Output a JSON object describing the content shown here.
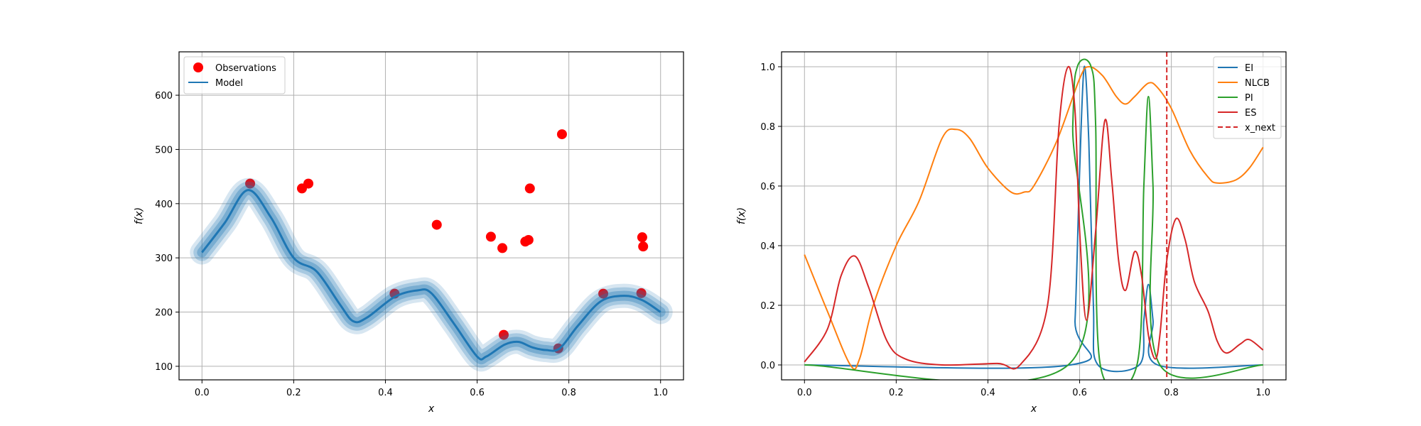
{
  "chart_data": [
    {
      "type": "line",
      "title": "",
      "xlabel": "x",
      "ylabel": "f(x)",
      "xlim": [
        -0.05,
        1.05
      ],
      "ylim": [
        75,
        680
      ],
      "grid": true,
      "legend_position": "top-left",
      "xticks": [
        0.0,
        0.2,
        0.4,
        0.6,
        0.8,
        1.0
      ],
      "xtick_labels": [
        "0.0",
        "0.2",
        "0.4",
        "0.6",
        "0.8",
        "1.0"
      ],
      "yticks": [
        100,
        200,
        300,
        400,
        500,
        600
      ],
      "ytick_labels": [
        "100",
        "200",
        "300",
        "400",
        "500",
        "600"
      ],
      "series": [
        {
          "name": "Observations",
          "kind": "scatter",
          "color": "#ff0000",
          "points": [
            [
              0.105,
              437
            ],
            [
              0.218,
              428
            ],
            [
              0.232,
              437
            ],
            [
              0.42,
              234
            ],
            [
              0.512,
              361
            ],
            [
              0.63,
              339
            ],
            [
              0.655,
              318
            ],
            [
              0.658,
              158
            ],
            [
              0.705,
              330
            ],
            [
              0.712,
              333
            ],
            [
              0.715,
              428
            ],
            [
              0.777,
              133
            ],
            [
              0.785,
              528
            ],
            [
              0.875,
              234
            ],
            [
              0.958,
              235
            ],
            [
              0.96,
              338
            ],
            [
              0.962,
              321
            ]
          ]
        },
        {
          "name": "Model",
          "kind": "line",
          "color": "#1f77b4",
          "band_color": "#1f77b4",
          "points": [
            [
              0.0,
              310
            ],
            [
              0.05,
              365
            ],
            [
              0.1,
              425
            ],
            [
              0.15,
              375
            ],
            [
              0.2,
              300
            ],
            [
              0.25,
              275
            ],
            [
              0.3,
              215
            ],
            [
              0.33,
              183
            ],
            [
              0.36,
              190
            ],
            [
              0.42,
              228
            ],
            [
              0.47,
              240
            ],
            [
              0.5,
              235
            ],
            [
              0.55,
              178
            ],
            [
              0.6,
              118
            ],
            [
              0.62,
              118
            ],
            [
              0.66,
              140
            ],
            [
              0.69,
              145
            ],
            [
              0.72,
              135
            ],
            [
              0.75,
              130
            ],
            [
              0.78,
              133
            ],
            [
              0.82,
              175
            ],
            [
              0.87,
              220
            ],
            [
              0.92,
              230
            ],
            [
              0.96,
              222
            ],
            [
              1.0,
              200
            ]
          ]
        }
      ]
    },
    {
      "type": "line",
      "title": "",
      "xlabel": "x",
      "ylabel": "f(x)",
      "xlim": [
        -0.05,
        1.05
      ],
      "ylim": [
        -0.05,
        1.05
      ],
      "grid": true,
      "legend_position": "top-right",
      "xticks": [
        0.0,
        0.2,
        0.4,
        0.6,
        0.8,
        1.0
      ],
      "xtick_labels": [
        "0.0",
        "0.2",
        "0.4",
        "0.6",
        "0.8",
        "1.0"
      ],
      "yticks": [
        0.0,
        0.2,
        0.4,
        0.6,
        0.8,
        1.0
      ],
      "ytick_labels": [
        "0.0",
        "0.2",
        "0.4",
        "0.6",
        "0.8",
        "1.0"
      ],
      "series": [
        {
          "name": "EI",
          "color": "#1f77b4",
          "points": [
            [
              0.0,
              0.0
            ],
            [
              0.58,
              0.0
            ],
            [
              0.59,
              0.15
            ],
            [
              0.6,
              0.65
            ],
            [
              0.61,
              1.0
            ],
            [
              0.62,
              0.75
            ],
            [
              0.63,
              0.2
            ],
            [
              0.64,
              0.0
            ],
            [
              0.73,
              0.0
            ],
            [
              0.74,
              0.15
            ],
            [
              0.75,
              0.27
            ],
            [
              0.76,
              0.15
            ],
            [
              0.77,
              0.0
            ],
            [
              1.0,
              0.0
            ]
          ]
        },
        {
          "name": "NLCB",
          "color": "#ff7f0e",
          "points": [
            [
              0.0,
              0.37
            ],
            [
              0.05,
              0.18
            ],
            [
              0.1,
              0.0
            ],
            [
              0.12,
              0.02
            ],
            [
              0.15,
              0.2
            ],
            [
              0.2,
              0.4
            ],
            [
              0.25,
              0.55
            ],
            [
              0.3,
              0.76
            ],
            [
              0.33,
              0.79
            ],
            [
              0.36,
              0.76
            ],
            [
              0.4,
              0.66
            ],
            [
              0.45,
              0.58
            ],
            [
              0.48,
              0.58
            ],
            [
              0.5,
              0.6
            ],
            [
              0.55,
              0.75
            ],
            [
              0.6,
              0.96
            ],
            [
              0.62,
              1.0
            ],
            [
              0.65,
              0.97
            ],
            [
              0.68,
              0.9
            ],
            [
              0.7,
              0.875
            ],
            [
              0.72,
              0.9
            ],
            [
              0.75,
              0.945
            ],
            [
              0.77,
              0.93
            ],
            [
              0.8,
              0.86
            ],
            [
              0.84,
              0.72
            ],
            [
              0.88,
              0.63
            ],
            [
              0.9,
              0.61
            ],
            [
              0.94,
              0.62
            ],
            [
              0.97,
              0.66
            ],
            [
              1.0,
              0.73
            ]
          ]
        },
        {
          "name": "PI",
          "color": "#2ca02c",
          "points": [
            [
              0.0,
              0.0
            ],
            [
              0.575,
              0.0
            ],
            [
              0.585,
              0.8
            ],
            [
              0.595,
              1.0
            ],
            [
              0.625,
              1.0
            ],
            [
              0.635,
              0.8
            ],
            [
              0.645,
              0.0
            ],
            [
              0.725,
              0.0
            ],
            [
              0.74,
              0.6
            ],
            [
              0.75,
              0.9
            ],
            [
              0.76,
              0.6
            ],
            [
              0.775,
              0.0
            ],
            [
              1.0,
              0.0
            ]
          ]
        },
        {
          "name": "ES",
          "color": "#d62728",
          "points": [
            [
              0.0,
              0.01
            ],
            [
              0.05,
              0.12
            ],
            [
              0.08,
              0.3
            ],
            [
              0.11,
              0.365
            ],
            [
              0.14,
              0.26
            ],
            [
              0.18,
              0.08
            ],
            [
              0.22,
              0.02
            ],
            [
              0.3,
              0.0
            ],
            [
              0.42,
              0.005
            ],
            [
              0.47,
              0.0
            ],
            [
              0.53,
              0.2
            ],
            [
              0.555,
              0.8
            ],
            [
              0.575,
              1.0
            ],
            [
              0.59,
              0.85
            ],
            [
              0.6,
              0.45
            ],
            [
              0.615,
              0.15
            ],
            [
              0.635,
              0.45
            ],
            [
              0.655,
              0.82
            ],
            [
              0.67,
              0.62
            ],
            [
              0.685,
              0.35
            ],
            [
              0.7,
              0.25
            ],
            [
              0.72,
              0.38
            ],
            [
              0.735,
              0.3
            ],
            [
              0.75,
              0.1
            ],
            [
              0.765,
              0.02
            ],
            [
              0.775,
              0.1
            ],
            [
              0.79,
              0.35
            ],
            [
              0.81,
              0.49
            ],
            [
              0.83,
              0.42
            ],
            [
              0.85,
              0.28
            ],
            [
              0.88,
              0.18
            ],
            [
              0.9,
              0.08
            ],
            [
              0.92,
              0.04
            ],
            [
              0.95,
              0.07
            ],
            [
              0.97,
              0.085
            ],
            [
              1.0,
              0.05
            ]
          ]
        },
        {
          "name": "x_next",
          "color": "#d62728",
          "dashed": true,
          "vline": 0.79
        }
      ]
    }
  ]
}
